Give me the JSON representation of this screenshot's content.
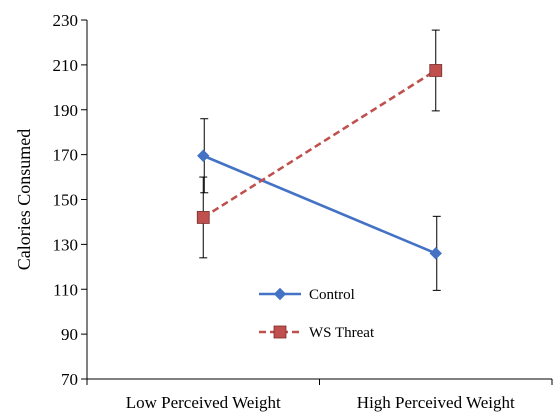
{
  "chart_data": {
    "type": "line",
    "title": "",
    "xlabel": "",
    "ylabel": "Calories Consumed",
    "categories": [
      "Low Perceived Weight",
      "High Perceived Weight"
    ],
    "ylim": [
      70,
      230
    ],
    "yticks": [
      70,
      90,
      110,
      130,
      150,
      170,
      190,
      210,
      230
    ],
    "grid": false,
    "legend_position": "bottom-center (inside plot)",
    "series": [
      {
        "name": "Control",
        "values": [
          169.5,
          126
        ],
        "error": [
          16.5,
          16.5
        ],
        "color": "#4472C4",
        "line_style": "solid",
        "marker": "diamond"
      },
      {
        "name": "WS Threat",
        "values": [
          142,
          207.5
        ],
        "error": [
          18,
          18
        ],
        "color": "#C0504D",
        "line_style": "dashed",
        "marker": "square"
      }
    ]
  }
}
